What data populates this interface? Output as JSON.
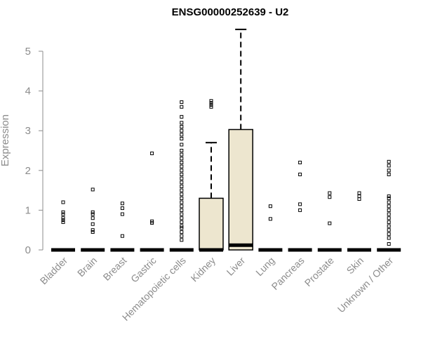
{
  "chart_data": {
    "type": "box",
    "title": "ENSG00000252639 - U2",
    "xlabel": "",
    "ylabel": "Expression",
    "ylim": [
      0,
      5.6
    ],
    "yticks": [
      0,
      1,
      2,
      3,
      4,
      5
    ],
    "colors": {
      "box_fill": "#ede6cf",
      "stroke": "#000000",
      "axis": "#8c8c8c"
    },
    "categories": [
      "Bladder",
      "Brain",
      "Breast",
      "Gastric",
      "Hematopoietic cells",
      "Kidney",
      "Liver",
      "Lung",
      "Pancreas",
      "Prostate",
      "Skin",
      "Unknown / Other"
    ],
    "boxes": [
      {
        "category": "Bladder",
        "q1": 0,
        "median": 0,
        "q3": 0,
        "whisker_low": 0,
        "whisker_high": 0,
        "outliers": [
          0.7,
          0.75,
          0.8,
          0.9,
          0.95,
          1.2
        ]
      },
      {
        "category": "Brain",
        "q1": 0,
        "median": 0,
        "q3": 0,
        "whisker_low": 0,
        "whisker_high": 0,
        "outliers": [
          0.45,
          0.5,
          0.65,
          0.8,
          0.9,
          0.95,
          1.52
        ]
      },
      {
        "category": "Breast",
        "q1": 0,
        "median": 0,
        "q3": 0,
        "whisker_low": 0,
        "whisker_high": 0,
        "outliers": [
          0.35,
          0.9,
          1.05,
          1.17
        ]
      },
      {
        "category": "Gastric",
        "q1": 0,
        "median": 0,
        "q3": 0,
        "whisker_low": 0,
        "whisker_high": 0,
        "outliers": [
          0.68,
          0.72,
          2.43
        ]
      },
      {
        "category": "Hematopoietic cells",
        "q1": 0,
        "median": 0,
        "q3": 0,
        "whisker_low": 0,
        "whisker_high": 0,
        "outliers": [
          0.25,
          0.35,
          0.45,
          0.55,
          0.6,
          0.7,
          0.8,
          0.9,
          1.0,
          1.1,
          1.2,
          1.3,
          1.4,
          1.5,
          1.6,
          1.7,
          1.8,
          1.9,
          2.0,
          2.1,
          2.2,
          2.3,
          2.4,
          2.5,
          2.65,
          2.8,
          2.9,
          3.0,
          3.1,
          3.2,
          3.35,
          3.6,
          3.72
        ]
      },
      {
        "category": "Kidney",
        "q1": 0,
        "median": 0,
        "q3": 1.3,
        "whisker_low": 0,
        "whisker_high": 2.7,
        "outliers": [
          3.6,
          3.65,
          3.7,
          3.75
        ]
      },
      {
        "category": "Liver",
        "q1": 0,
        "median": 0.12,
        "q3": 3.03,
        "whisker_low": 0,
        "whisker_high": 5.55,
        "outliers": []
      },
      {
        "category": "Lung",
        "q1": 0,
        "median": 0,
        "q3": 0,
        "whisker_low": 0,
        "whisker_high": 0,
        "outliers": [
          0.78,
          1.1
        ]
      },
      {
        "category": "Pancreas",
        "q1": 0,
        "median": 0,
        "q3": 0,
        "whisker_low": 0,
        "whisker_high": 0,
        "outliers": [
          1.0,
          1.15,
          1.9,
          2.2
        ]
      },
      {
        "category": "Prostate",
        "q1": 0,
        "median": 0,
        "q3": 0,
        "whisker_low": 0,
        "whisker_high": 0,
        "outliers": [
          0.67,
          1.33,
          1.43
        ]
      },
      {
        "category": "Skin",
        "q1": 0,
        "median": 0,
        "q3": 0,
        "whisker_low": 0,
        "whisker_high": 0,
        "outliers": [
          1.28,
          1.35,
          1.43
        ]
      },
      {
        "category": "Unknown / Other",
        "q1": 0,
        "median": 0,
        "q3": 0,
        "whisker_low": 0,
        "whisker_high": 0,
        "outliers": [
          0.15,
          0.3,
          0.4,
          0.5,
          0.6,
          0.7,
          0.8,
          0.9,
          1.0,
          1.1,
          1.2,
          1.3,
          1.35,
          1.9,
          2.0,
          2.12,
          2.22
        ]
      }
    ]
  }
}
